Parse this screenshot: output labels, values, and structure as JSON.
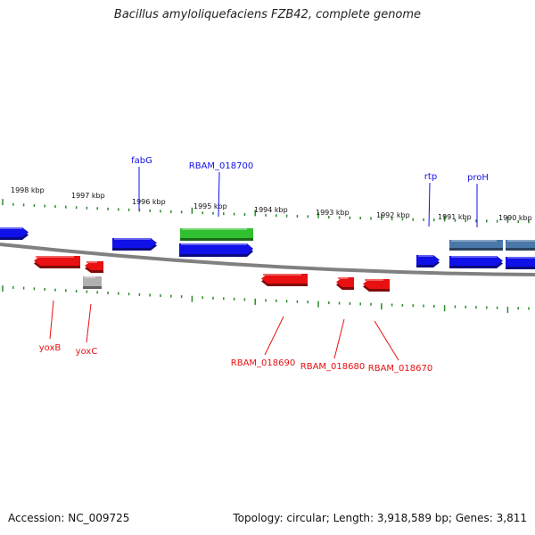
{
  "title": "Bacillus amyloliquefaciens FZB42, complete genome",
  "footer": {
    "accession": "Accession: NC_009725",
    "summary": "Topology: circular; Length: 3,918,589 bp; Genes: 3,811"
  },
  "colors": {
    "backbone": "#808080",
    "ticks": "#2a8a2a",
    "forward_gene": "#1010e8",
    "reverse_gene": "#e81010",
    "rna_gene": "#30c030",
    "pseudo_gene": "#b0b0b0",
    "cds_dark": "#4a78a8"
  },
  "scale": [
    {
      "label": "1998 kbp"
    },
    {
      "label": "1997 kbp"
    },
    {
      "label": "1996 kbp"
    },
    {
      "label": "1995 kbp"
    },
    {
      "label": "1994 kbp"
    },
    {
      "label": "1993 kbp"
    },
    {
      "label": "1992 kbp"
    },
    {
      "label": "1991 kbp"
    },
    {
      "label": "1990 kbp"
    }
  ],
  "gene_labels": {
    "top": [
      "fabG",
      "RBAM_018700",
      "rtp",
      "proH"
    ],
    "bottom": [
      "yoxB",
      "yoxC",
      "RBAM_018690",
      "RBAM_018680",
      "RBAM_018670"
    ]
  }
}
